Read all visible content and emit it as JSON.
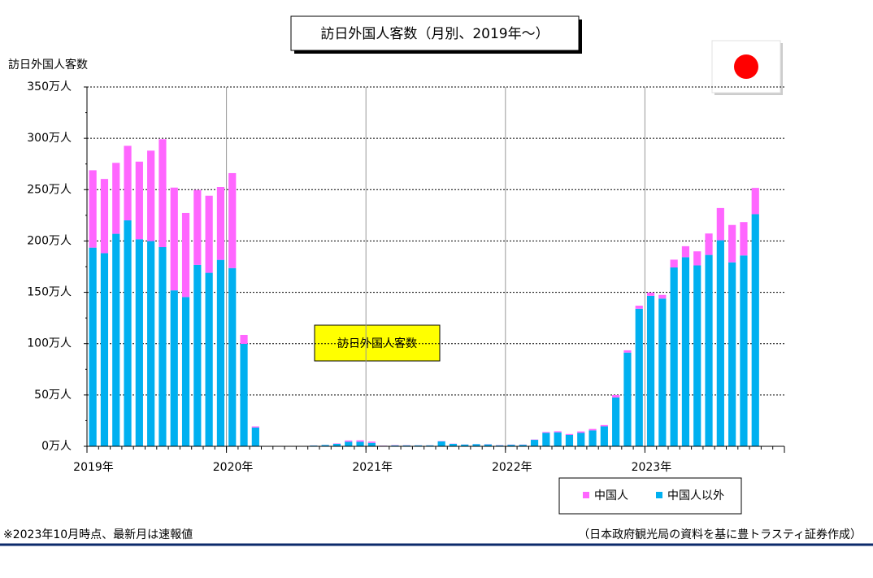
{
  "chart_data": {
    "type": "bar",
    "stacked": true,
    "title": "訪日外国人客数（月別、2019年～）",
    "y_label": "訪日外国人客数",
    "annotation": "訪日外国人客数",
    "footnote_left": "※2023年10月時点、最新月は速報値",
    "footnote_right": "（日本政府観光局の資料を基に豊トラスティ証券作成）",
    "categories": [
      "2019年",
      null,
      null,
      null,
      null,
      null,
      null,
      null,
      null,
      null,
      null,
      null,
      "2020年",
      null,
      null,
      null,
      null,
      null,
      null,
      null,
      null,
      null,
      null,
      null,
      "2021年",
      null,
      null,
      null,
      null,
      null,
      null,
      null,
      null,
      null,
      null,
      null,
      "2022年",
      null,
      null,
      null,
      null,
      null,
      null,
      null,
      null,
      null,
      null,
      null,
      "2023年",
      null,
      null,
      null,
      null,
      null,
      null,
      null,
      null,
      null,
      null,
      null
    ],
    "series": [
      {
        "name": "中国人",
        "color": "#ff66ff",
        "values": [
          75.4,
          72.3,
          69.1,
          72.6,
          75.6,
          88.1,
          105.1,
          100.1,
          81.9,
          73.0,
          75.1,
          71.0,
          92.5,
          8.7,
          1.1,
          0.02,
          0.01,
          0.04,
          0.05,
          0.09,
          0.1,
          0.4,
          1.2,
          1.4,
          1.2,
          0.2,
          0.3,
          0.2,
          0.1,
          0.1,
          0.3,
          0.2,
          0.1,
          0.1,
          0.2,
          0.2,
          0.2,
          0.2,
          0.3,
          0.8,
          1.1,
          0.8,
          1.4,
          1.4,
          1.3,
          2.3,
          2.2,
          3.0,
          3.1,
          3.6,
          7.6,
          10.7,
          13.7,
          20.9,
          31.4,
          36.4,
          32.5,
          25.6,
          null,
          null
        ]
      },
      {
        "name": "中国人以外",
        "color": "#00b0f0",
        "values": [
          193.5,
          188.1,
          207.0,
          220.1,
          201.7,
          199.9,
          194.0,
          151.9,
          145.4,
          176.7,
          169.0,
          181.6,
          173.6,
          99.8,
          18.3,
          0.27,
          0.16,
          0.22,
          0.34,
          0.76,
          1.27,
          2.38,
          4.46,
          4.45,
          3.4,
          0.5,
          0.9,
          0.9,
          0.9,
          0.9,
          4.8,
          2.4,
          1.7,
          2.1,
          1.9,
          1.0,
          1.5,
          1.5,
          6.3,
          13.1,
          13.6,
          11.2,
          13.1,
          15.5,
          19.4,
          47.6,
          91.3,
          134.0,
          146.6,
          143.9,
          174.2,
          184.2,
          176.2,
          186.4,
          200.7,
          179.2,
          185.9,
          226.1,
          null,
          null
        ]
      }
    ],
    "ylim": [
      0,
      350
    ],
    "yticks": [
      {
        "value": 0,
        "label": "0万人"
      },
      {
        "value": 50,
        "label": "50万人"
      },
      {
        "value": 100,
        "label": "100万人"
      },
      {
        "value": 150,
        "label": "150万人"
      },
      {
        "value": 200,
        "label": "200万人"
      },
      {
        "value": 250,
        "label": "250万人"
      },
      {
        "value": 300,
        "label": "300万人"
      },
      {
        "value": 350,
        "label": "350万人"
      }
    ],
    "grid": true,
    "legend": "bottom-right"
  }
}
